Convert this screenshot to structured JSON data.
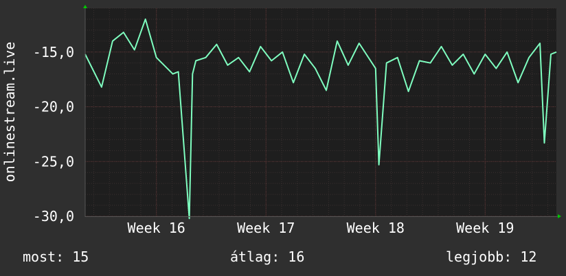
{
  "chart_data": {
    "type": "line",
    "ylabel": "onlinestream.live",
    "ylim": [
      -30,
      -11
    ],
    "yticks": [
      -15,
      -20,
      -25,
      -30
    ],
    "ytick_labels": [
      "-15,0",
      "-20,0",
      "-25,0",
      "-30,0"
    ],
    "xlabels": [
      "Week 16",
      "Week 17",
      "Week 18",
      "Week 19"
    ],
    "x_range_weeks": [
      15.35,
      19.65
    ],
    "grid": true,
    "series": [
      {
        "color": "#7fffc0",
        "x": [
          15.35,
          15.5,
          15.6,
          15.7,
          15.8,
          15.9,
          16.0,
          16.15,
          16.2,
          16.3,
          16.33,
          16.36,
          16.45,
          16.55,
          16.65,
          16.75,
          16.85,
          16.95,
          17.05,
          17.15,
          17.25,
          17.35,
          17.45,
          17.55,
          17.65,
          17.75,
          17.85,
          18.0,
          18.03,
          18.1,
          18.2,
          18.3,
          18.4,
          18.5,
          18.6,
          18.7,
          18.8,
          18.9,
          19.0,
          19.1,
          19.2,
          19.3,
          19.4,
          19.5,
          19.54,
          19.6,
          19.65
        ],
        "values": [
          -15.2,
          -18.2,
          -14.0,
          -13.2,
          -14.8,
          -12.0,
          -15.5,
          -17.0,
          -16.8,
          -30.2,
          -17.0,
          -15.8,
          -15.5,
          -14.3,
          -16.2,
          -15.5,
          -16.8,
          -14.5,
          -15.8,
          -15.0,
          -17.8,
          -15.2,
          -16.5,
          -18.5,
          -14.0,
          -16.2,
          -14.2,
          -16.5,
          -25.3,
          -16.0,
          -15.5,
          -18.6,
          -15.8,
          -16.0,
          -14.5,
          -16.2,
          -15.2,
          -17.0,
          -15.2,
          -16.5,
          -15.0,
          -17.8,
          -15.5,
          -14.2,
          -23.3,
          -15.2,
          -15.0
        ]
      }
    ]
  },
  "footer": {
    "current": "most: 15",
    "average": "átlag: 16",
    "best": "legjobb: 12"
  }
}
